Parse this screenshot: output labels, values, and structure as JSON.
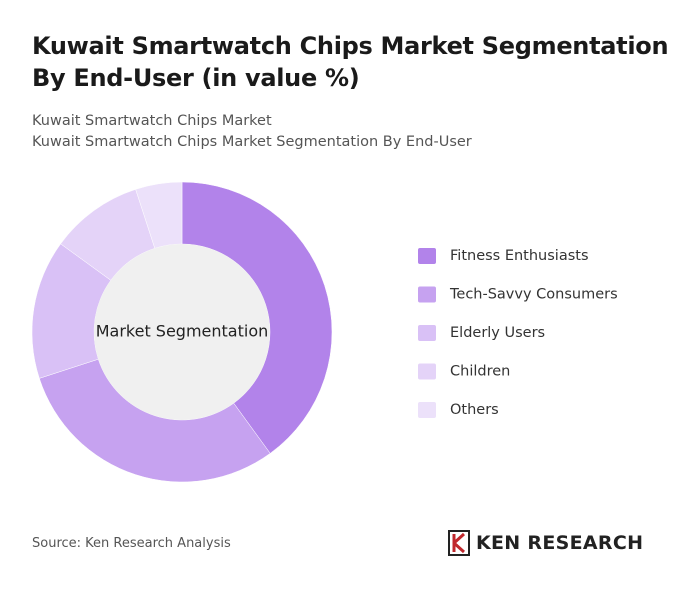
{
  "chart_data": {
    "type": "donut",
    "title": "Kuwait Smartwatch Chips Market Segmentation By End-User (in value %)",
    "subtitle": "Kuwait Smartwatch Chips Market",
    "subtitle2": "Kuwait Smartwatch Chips Market Segmentation By End-User",
    "center_label": "Market Segmentation",
    "categories": [
      "Fitness Enthusiasts",
      "Tech-Savvy Consumers",
      "Elderly Users",
      "Children",
      "Others"
    ],
    "values": [
      40,
      30,
      15,
      10,
      5
    ],
    "colors": [
      "#b283ea",
      "#c6a2f0",
      "#d9c1f6",
      "#e4d3f8",
      "#ece1fa"
    ]
  },
  "source": "Source: Ken Research Analysis",
  "logo": "KEN RESEARCH"
}
